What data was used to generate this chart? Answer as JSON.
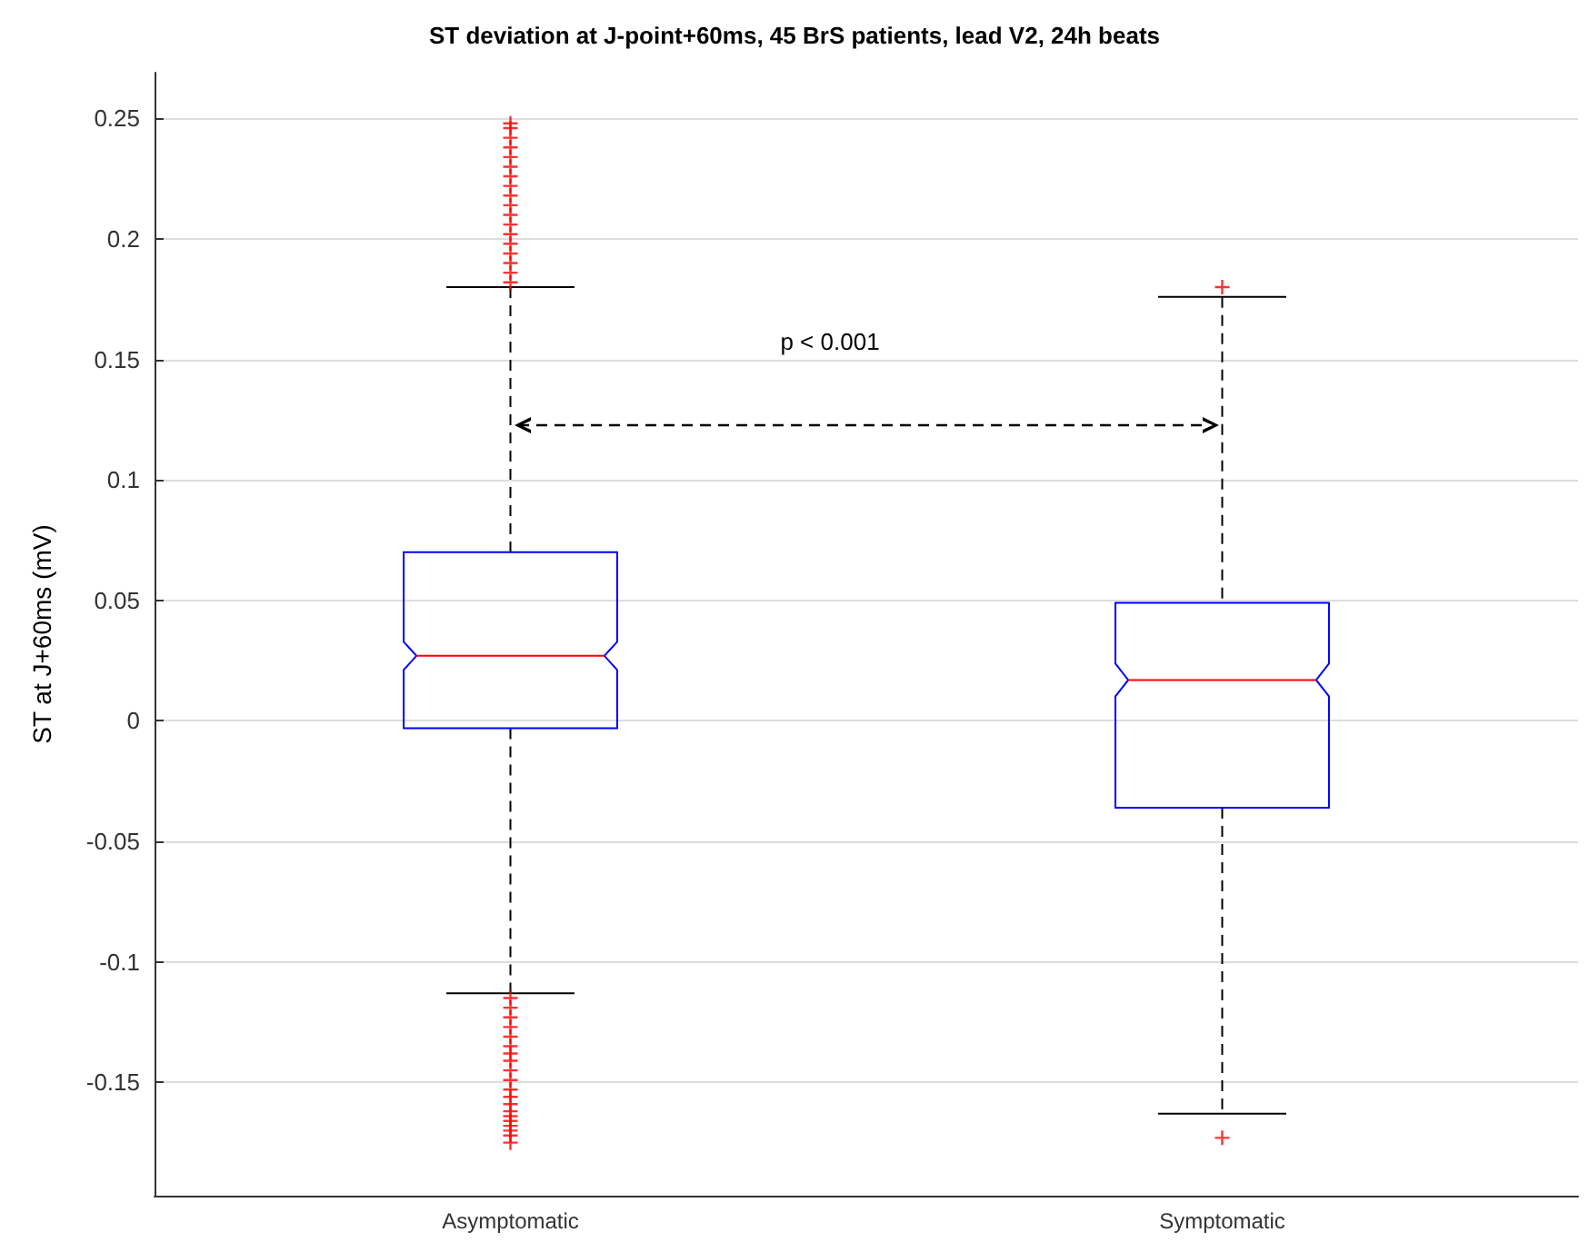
{
  "chart_data": {
    "type": "box",
    "title": "ST deviation at J-point+60ms, 45 BrS patients, lead V2, 24h beats",
    "ylabel": "ST at J+60ms (mV)",
    "categories": [
      "Asymptomatic",
      "Symptomatic"
    ],
    "boxes": [
      {
        "low": -0.113,
        "q1": -0.003,
        "median": 0.027,
        "q3": 0.07,
        "high": 0.18,
        "outliers": [
          0.182,
          0.186,
          0.19,
          0.194,
          0.198,
          0.202,
          0.206,
          0.21,
          0.214,
          0.218,
          0.222,
          0.226,
          0.23,
          0.234,
          0.238,
          0.242,
          0.246,
          0.248,
          -0.115,
          -0.119,
          -0.123,
          -0.127,
          -0.131,
          -0.135,
          -0.138,
          -0.141,
          -0.145,
          -0.149,
          -0.153,
          -0.156,
          -0.159,
          -0.162,
          -0.164,
          -0.166,
          -0.168,
          -0.17,
          -0.172,
          -0.175
        ]
      },
      {
        "low": -0.163,
        "q1": -0.036,
        "median": 0.017,
        "q3": 0.049,
        "high": 0.176,
        "outliers": [
          0.18,
          -0.173
        ]
      }
    ],
    "color": "#0000ff",
    "ylim": [
      -0.197,
      0.269
    ],
    "yticks": [
      -0.15,
      -0.1,
      -0.05,
      0,
      0.05,
      0.1,
      0.15,
      0.2,
      0.25
    ],
    "grid": "y",
    "annotations": [
      "p < 0.001"
    ]
  }
}
